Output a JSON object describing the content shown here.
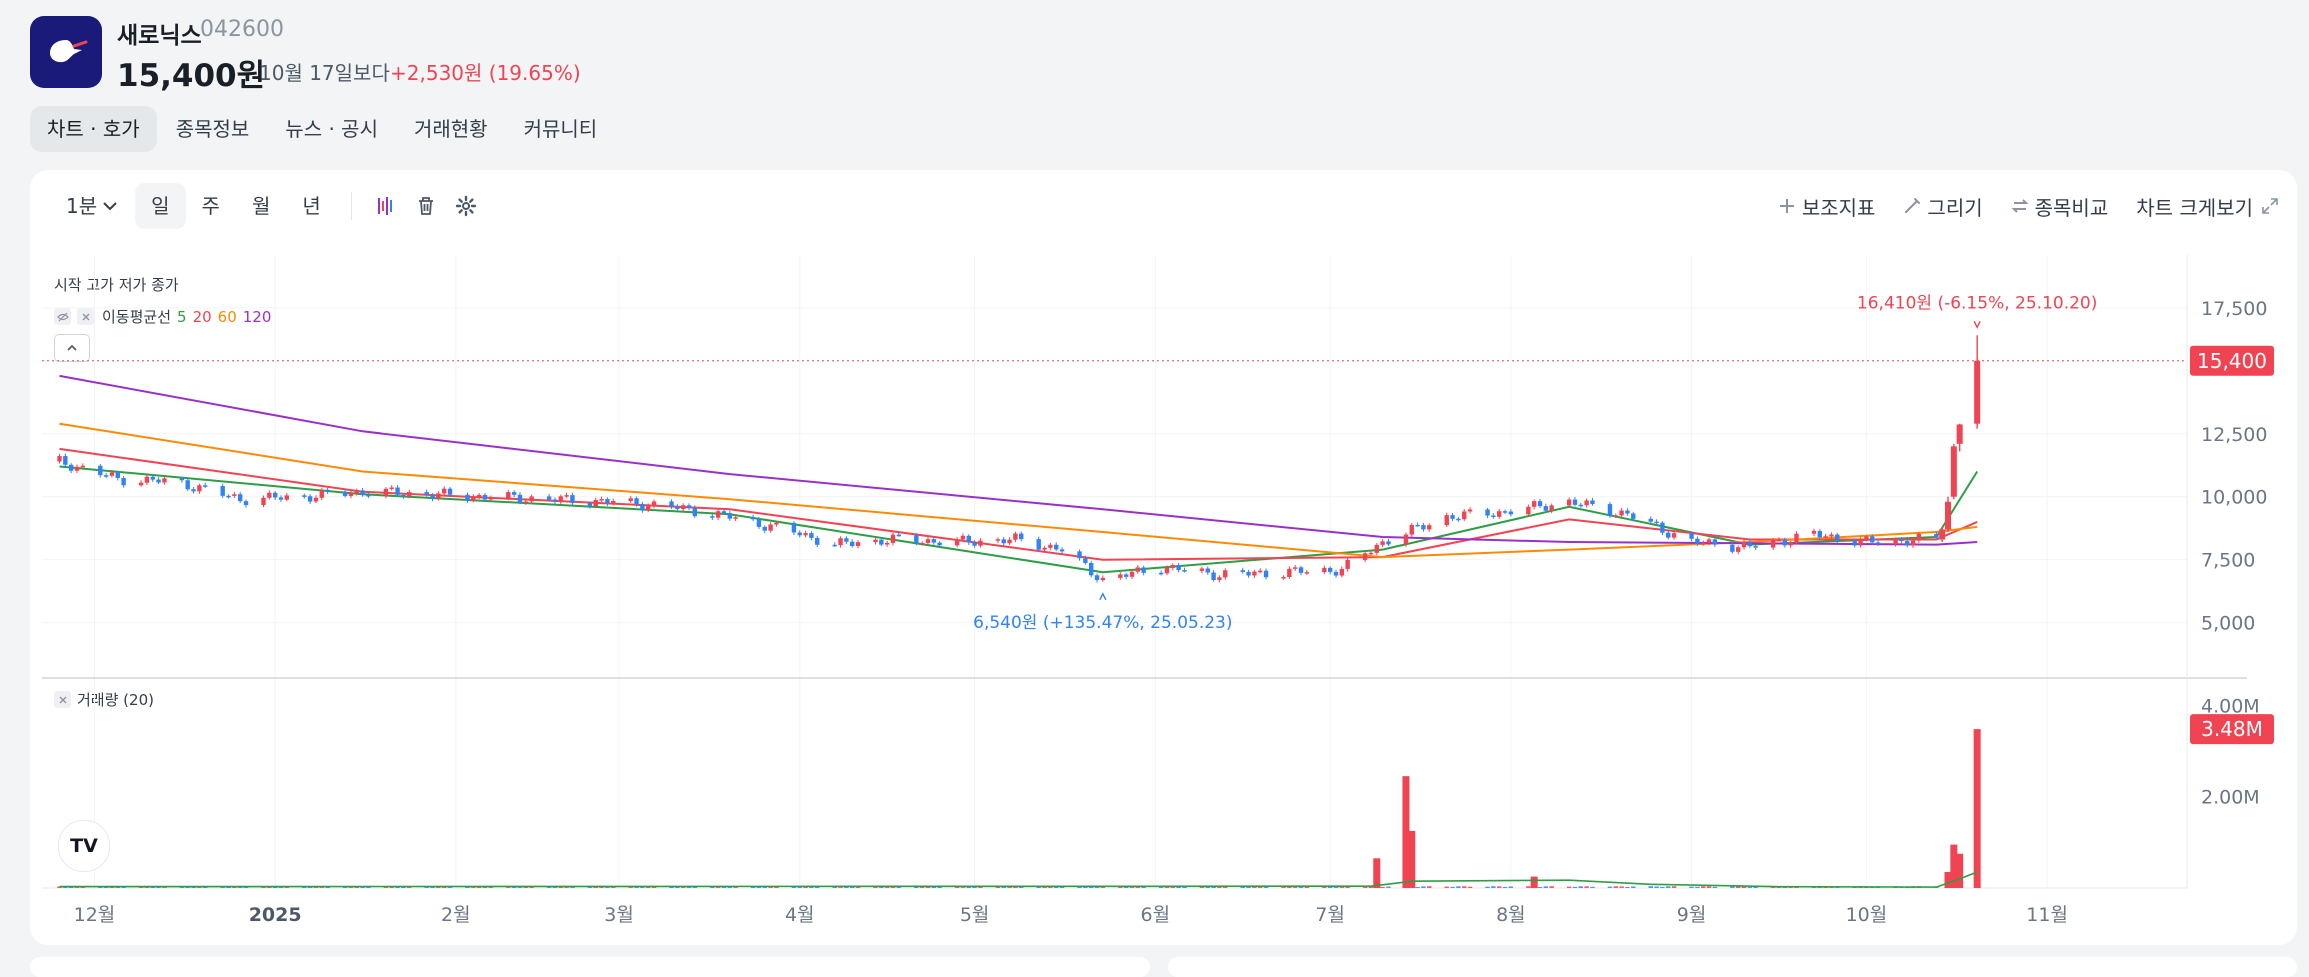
{
  "header": {
    "name": "새로닉스",
    "code": "042600",
    "price": "15,400원",
    "compare_label": "10월 17일보다",
    "change": "+2,530원 (19.65%)"
  },
  "tabs": [
    {
      "label": "차트 · 호가",
      "active": true
    },
    {
      "label": "종목정보"
    },
    {
      "label": "뉴스 · 공시"
    },
    {
      "label": "거래현황"
    },
    {
      "label": "커뮤니티"
    }
  ],
  "toolbar": {
    "interval": "1분",
    "periods": [
      "일",
      "주",
      "월",
      "년"
    ],
    "active_period": "일",
    "indicator": "보조지표",
    "draw": "그리기",
    "compare": "종목비교",
    "enlarge": "차트 크게보기"
  },
  "legend": {
    "ohlc": "시작 고가 저가 종가",
    "ma_title": "이동평균선",
    "ma_periods": [
      {
        "label": "5",
        "color": "#2e9e44"
      },
      {
        "label": "20",
        "color": "#f04452"
      },
      {
        "label": "60",
        "color": "#ff8a00"
      },
      {
        "label": "120",
        "color": "#9b30c9"
      }
    ],
    "volume": "거래량 (20)"
  },
  "colors": {
    "up": "#f04452",
    "down": "#3182f6",
    "accent": "#f04452"
  },
  "chart_data": {
    "type": "candlestick",
    "x_ticks": [
      "12월",
      "2025",
      "2월",
      "3월",
      "4월",
      "5월",
      "6월",
      "7월",
      "8월",
      "9월",
      "10월",
      "11월"
    ],
    "y_ticks": [
      "17,500",
      "12,500",
      "10,000",
      "7,500",
      "5,000"
    ],
    "volume_ticks": [
      "4.00M",
      "2.00M"
    ],
    "ylim": [
      2800,
      19600
    ],
    "last_price": 15400,
    "last_price_label": "15,400",
    "last_volume_label": "3.48M",
    "high_annotation": "16,410원 (-6.15%, 25.10.20)",
    "low_annotation": "6,540원 (+135.47%, 25.05.23)",
    "price_path": [
      [
        "2024-11-25",
        11400
      ],
      [
        "2024-12-05",
        10700
      ],
      [
        "2024-12-15",
        10600
      ],
      [
        "2024-12-26",
        9900
      ],
      [
        "2025-01-06",
        10000
      ],
      [
        "2025-01-16",
        10200
      ],
      [
        "2025-01-27",
        10100
      ],
      [
        "2025-02-06",
        10000
      ],
      [
        "2025-02-17",
        9900
      ],
      [
        "2025-02-28",
        9800
      ],
      [
        "2025-03-10",
        9600
      ],
      [
        "2025-03-20",
        9200
      ],
      [
        "2025-03-31",
        8600
      ],
      [
        "2025-04-07",
        8100
      ],
      [
        "2025-04-17",
        8300
      ],
      [
        "2025-04-28",
        8200
      ],
      [
        "2025-05-08",
        8300
      ],
      [
        "2025-05-16",
        7900
      ],
      [
        "2025-05-23",
        6700
      ],
      [
        "2025-06-02",
        7200
      ],
      [
        "2025-06-12",
        6900
      ],
      [
        "2025-06-23",
        7000
      ],
      [
        "2025-07-03",
        7100
      ],
      [
        "2025-07-10",
        8200
      ],
      [
        "2025-07-21",
        9200
      ],
      [
        "2025-07-31",
        9400
      ],
      [
        "2025-08-11",
        9800
      ],
      [
        "2025-08-21",
        9300
      ],
      [
        "2025-09-01",
        8200
      ],
      [
        "2025-09-11",
        8000
      ],
      [
        "2025-09-22",
        8500
      ],
      [
        "2025-10-01",
        8200
      ],
      [
        "2025-10-13",
        8300
      ],
      [
        "2025-10-15",
        9800
      ],
      [
        "2025-10-16",
        12000
      ],
      [
        "2025-10-17",
        12870
      ],
      [
        "2025-10-20",
        15400
      ]
    ],
    "ma_paths": [
      {
        "name": "5",
        "values": [
          [
            "2024-11-25",
            11200
          ],
          [
            "2025-01-16",
            10100
          ],
          [
            "2025-03-20",
            9300
          ],
          [
            "2025-05-23",
            7000
          ],
          [
            "2025-07-10",
            7900
          ],
          [
            "2025-08-11",
            9600
          ],
          [
            "2025-09-11",
            8100
          ],
          [
            "2025-10-13",
            8400
          ],
          [
            "2025-10-20",
            11000
          ]
        ]
      },
      {
        "name": "20",
        "values": [
          [
            "2024-11-25",
            11900
          ],
          [
            "2025-01-16",
            10200
          ],
          [
            "2025-03-20",
            9500
          ],
          [
            "2025-05-23",
            7500
          ],
          [
            "2025-07-10",
            7600
          ],
          [
            "2025-08-11",
            9100
          ],
          [
            "2025-09-11",
            8300
          ],
          [
            "2025-10-13",
            8300
          ],
          [
            "2025-10-20",
            9000
          ]
        ]
      },
      {
        "name": "60",
        "values": [
          [
            "2024-11-25",
            12900
          ],
          [
            "2025-01-16",
            11000
          ],
          [
            "2025-03-20",
            9900
          ],
          [
            "2025-05-23",
            8600
          ],
          [
            "2025-07-10",
            7600
          ],
          [
            "2025-08-11",
            7900
          ],
          [
            "2025-09-11",
            8200
          ],
          [
            "2025-10-13",
            8600
          ],
          [
            "2025-10-20",
            8800
          ]
        ]
      },
      {
        "name": "120",
        "values": [
          [
            "2024-11-25",
            14800
          ],
          [
            "2025-01-16",
            12600
          ],
          [
            "2025-03-20",
            10900
          ],
          [
            "2025-05-23",
            9500
          ],
          [
            "2025-07-10",
            8400
          ],
          [
            "2025-08-11",
            8200
          ],
          [
            "2025-09-11",
            8150
          ],
          [
            "2025-10-13",
            8100
          ],
          [
            "2025-10-20",
            8200
          ]
        ]
      }
    ],
    "volume_spikes": [
      [
        "2025-07-09",
        0.65
      ],
      [
        "2025-07-14",
        2.45
      ],
      [
        "2025-07-15",
        1.25
      ],
      [
        "2025-08-05",
        0.25
      ],
      [
        "2025-10-15",
        0.35
      ],
      [
        "2025-10-16",
        0.95
      ],
      [
        "2025-10-17",
        0.75
      ],
      [
        "2025-10-20",
        3.48
      ]
    ]
  }
}
